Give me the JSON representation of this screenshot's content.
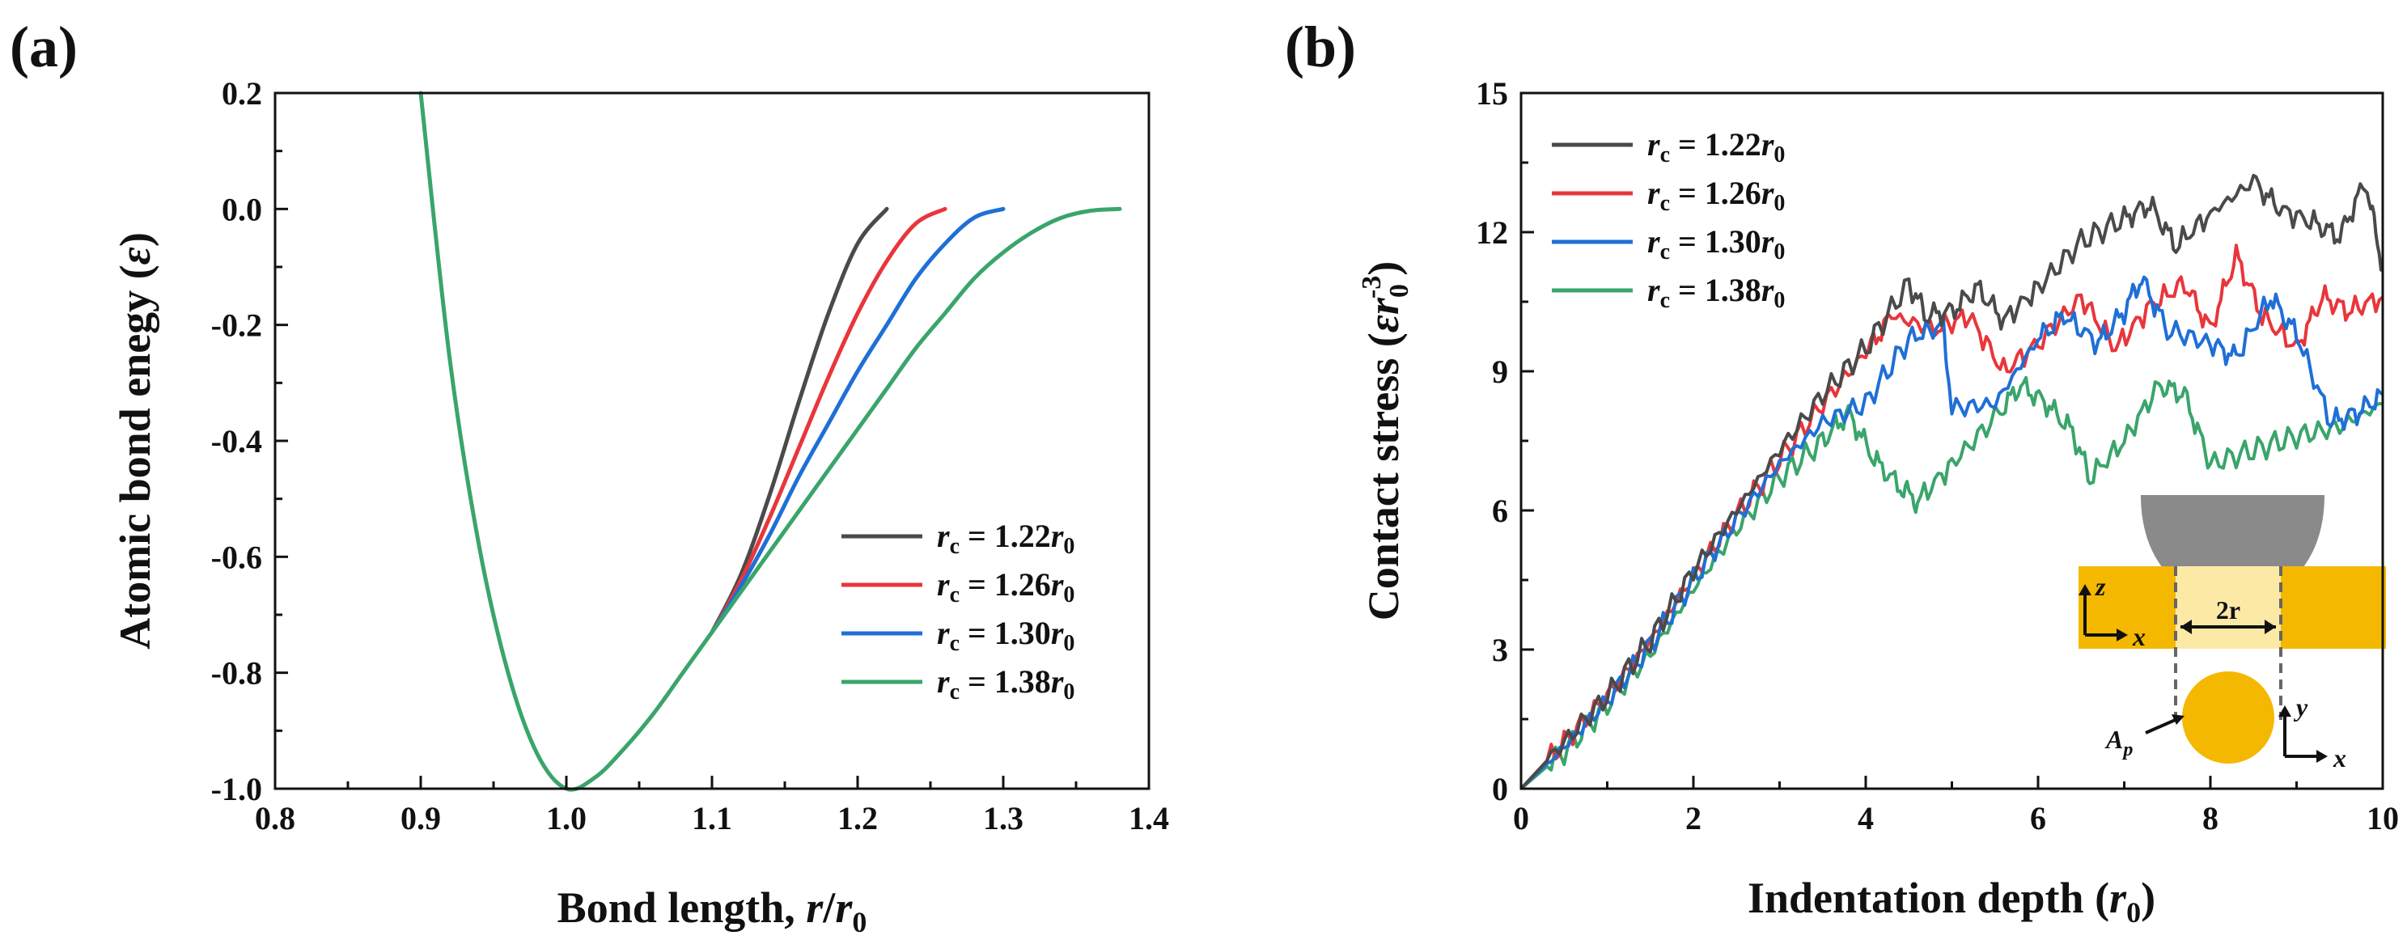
{
  "chart_data": [
    {
      "panel_label": "(a)",
      "type": "line",
      "xlabel": {
        "main": "Bond length, ",
        "var": "r",
        "slash": "/",
        "var2": "r",
        "sub": "0"
      },
      "ylabel": {
        "main": "Atomic bond enegy (",
        "var": "ε",
        "close": ")"
      },
      "xlim": [
        0.8,
        1.4
      ],
      "ylim": [
        -1.0,
        0.2
      ],
      "xticks": [
        0.8,
        0.9,
        1.0,
        1.1,
        1.2,
        1.3,
        1.4
      ],
      "xtick_labels": [
        "0.8",
        "0.9",
        "1.0",
        "1.1",
        "1.2",
        "1.3",
        "1.4"
      ],
      "yticks": [
        -1.0,
        -0.8,
        -0.6,
        -0.4,
        -0.2,
        0.0,
        0.2
      ],
      "ytick_labels": [
        "-1.0",
        "-0.8",
        "-0.6",
        "-0.4",
        "-0.2",
        "0.0",
        "0.2"
      ],
      "legend_position": "bottom-right",
      "series": [
        {
          "name": "r_c = 1.22r_0",
          "rc": 1.22,
          "color": "#4a4a4a",
          "legend": {
            "r": "r",
            "sub": "c",
            "eq": " = 1.22",
            "r2": "r",
            "sub2": "0"
          }
        },
        {
          "name": "r_c = 1.26r_0",
          "rc": 1.26,
          "color": "#e8363b",
          "legend": {
            "r": "r",
            "sub": "c",
            "eq": " = 1.26",
            "r2": "r",
            "sub2": "0"
          }
        },
        {
          "name": "r_c = 1.30r_0",
          "rc": 1.3,
          "color": "#1f6fd6",
          "legend": {
            "r": "r",
            "sub": "c",
            "eq": " = 1.30",
            "r2": "r",
            "sub2": "0"
          }
        },
        {
          "name": "r_c = 1.38r_0",
          "rc": 1.38,
          "color": "#3aa56a",
          "legend": {
            "r": "r",
            "sub": "c",
            "eq": " = 1.38",
            "r2": "r",
            "sub2": "0"
          }
        }
      ],
      "curve_points": {
        "shared": [
          [
            0.9,
            0.2
          ],
          [
            0.92,
            -0.26
          ],
          [
            0.94,
            -0.58
          ],
          [
            0.96,
            -0.8
          ],
          [
            0.98,
            -0.94
          ],
          [
            1.0,
            -1.0
          ],
          [
            1.02,
            -0.98
          ],
          [
            1.04,
            -0.93
          ],
          [
            1.06,
            -0.87
          ],
          [
            1.08,
            -0.8
          ],
          [
            1.1,
            -0.73
          ]
        ],
        "tails": [
          [
            [
              1.1,
              -0.73
            ],
            [
              1.12,
              -0.63
            ],
            [
              1.14,
              -0.49
            ],
            [
              1.16,
              -0.33
            ],
            [
              1.18,
              -0.18
            ],
            [
              1.2,
              -0.06
            ],
            [
              1.22,
              0.0
            ]
          ],
          [
            [
              1.1,
              -0.73
            ],
            [
              1.12,
              -0.64
            ],
            [
              1.14,
              -0.53
            ],
            [
              1.16,
              -0.41
            ],
            [
              1.18,
              -0.29
            ],
            [
              1.2,
              -0.18
            ],
            [
              1.22,
              -0.09
            ],
            [
              1.24,
              -0.025
            ],
            [
              1.26,
              0.0
            ]
          ],
          [
            [
              1.1,
              -0.73
            ],
            [
              1.12,
              -0.65
            ],
            [
              1.14,
              -0.56
            ],
            [
              1.16,
              -0.46
            ],
            [
              1.18,
              -0.37
            ],
            [
              1.2,
              -0.28
            ],
            [
              1.22,
              -0.2
            ],
            [
              1.24,
              -0.12
            ],
            [
              1.26,
              -0.06
            ],
            [
              1.28,
              -0.015
            ],
            [
              1.3,
              0.0
            ]
          ],
          [
            [
              1.1,
              -0.73
            ],
            [
              1.12,
              -0.66
            ],
            [
              1.14,
              -0.59
            ],
            [
              1.16,
              -0.52
            ],
            [
              1.18,
              -0.45
            ],
            [
              1.2,
              -0.38
            ],
            [
              1.22,
              -0.31
            ],
            [
              1.24,
              -0.24
            ],
            [
              1.26,
              -0.18
            ],
            [
              1.28,
              -0.12
            ],
            [
              1.3,
              -0.075
            ],
            [
              1.32,
              -0.04
            ],
            [
              1.34,
              -0.015
            ],
            [
              1.36,
              -0.003
            ],
            [
              1.38,
              0.0
            ]
          ]
        ]
      }
    },
    {
      "panel_label": "(b)",
      "type": "line",
      "xlabel": {
        "main": "Indentation depth (",
        "var": "r",
        "sub": "0",
        "close": ")"
      },
      "ylabel": {
        "main": "Contact stress (",
        "var": "εr",
        "sub": "0",
        "sup": "-3",
        "close": ")"
      },
      "xlim": [
        0,
        10
      ],
      "ylim": [
        0,
        15
      ],
      "xticks": [
        0,
        2,
        4,
        6,
        8,
        10
      ],
      "xtick_labels": [
        "0",
        "2",
        "4",
        "6",
        "8",
        "10"
      ],
      "yticks": [
        0,
        3,
        6,
        9,
        12,
        15
      ],
      "ytick_labels": [
        "0",
        "3",
        "6",
        "9",
        "12",
        "15"
      ],
      "legend_position": "top-left",
      "series": [
        {
          "name": "r_c = 1.22r_0",
          "color": "#4a4a4a",
          "legend": {
            "r": "r",
            "sub": "c",
            "eq": " = 1.22",
            "r2": "r",
            "sub2": "0"
          },
          "points": [
            [
              0,
              0
            ],
            [
              0.5,
              1.0
            ],
            [
              1,
              2.0
            ],
            [
              1.5,
              3.2
            ],
            [
              2,
              4.7
            ],
            [
              2.5,
              6.0
            ],
            [
              3,
              7.3
            ],
            [
              3.5,
              8.5
            ],
            [
              4,
              9.5
            ],
            [
              4.5,
              10.9
            ],
            [
              4.7,
              10.2
            ],
            [
              5,
              10.3
            ],
            [
              5.3,
              10.8
            ],
            [
              5.6,
              10.1
            ],
            [
              6,
              10.8
            ],
            [
              6.5,
              11.8
            ],
            [
              7,
              12.3
            ],
            [
              7.3,
              12.6
            ],
            [
              7.6,
              11.7
            ],
            [
              8,
              12.4
            ],
            [
              8.5,
              13.1
            ],
            [
              8.8,
              12.5
            ],
            [
              9.2,
              12.2
            ],
            [
              9.5,
              11.9
            ],
            [
              9.8,
              13.1
            ],
            [
              10,
              11.2
            ]
          ]
        },
        {
          "name": "r_c = 1.26r_0",
          "color": "#e8363b",
          "legend": {
            "r": "r",
            "sub": "c",
            "eq": " = 1.26",
            "r2": "r",
            "sub2": "0"
          },
          "points": [
            [
              0,
              0
            ],
            [
              0.5,
              1.0
            ],
            [
              1,
              2.0
            ],
            [
              1.5,
              3.2
            ],
            [
              2,
              4.6
            ],
            [
              2.5,
              5.9
            ],
            [
              3,
              7.1
            ],
            [
              3.5,
              8.3
            ],
            [
              4,
              9.4
            ],
            [
              4.3,
              10.2
            ],
            [
              4.8,
              9.9
            ],
            [
              5.2,
              10.2
            ],
            [
              5.6,
              9.0
            ],
            [
              6,
              9.6
            ],
            [
              6.5,
              10.6
            ],
            [
              6.9,
              9.5
            ],
            [
              7.3,
              10.4
            ],
            [
              7.7,
              10.9
            ],
            [
              8,
              9.9
            ],
            [
              8.3,
              11.5
            ],
            [
              8.6,
              10.2
            ],
            [
              9,
              9.5
            ],
            [
              9.3,
              10.6
            ],
            [
              9.6,
              10.3
            ],
            [
              10,
              10.6
            ]
          ]
        },
        {
          "name": "r_c = 1.30r_0",
          "color": "#1f6fd6",
          "legend": {
            "r": "r",
            "sub": "c",
            "eq": " = 1.30",
            "r2": "r",
            "sub2": "0"
          },
          "points": [
            [
              0,
              0
            ],
            [
              0.5,
              0.9
            ],
            [
              1,
              1.9
            ],
            [
              1.5,
              3.1
            ],
            [
              2,
              4.5
            ],
            [
              2.5,
              5.8
            ],
            [
              3,
              7.0
            ],
            [
              3.5,
              7.9
            ],
            [
              4,
              8.3
            ],
            [
              4.5,
              9.7
            ],
            [
              4.9,
              10.0
            ],
            [
              5,
              8.2
            ],
            [
              5.5,
              8.3
            ],
            [
              6,
              9.7
            ],
            [
              6.3,
              10.2
            ],
            [
              6.7,
              9.6
            ],
            [
              7,
              10.3
            ],
            [
              7.2,
              11.0
            ],
            [
              7.5,
              9.9
            ],
            [
              8,
              9.6
            ],
            [
              8.3,
              9.3
            ],
            [
              8.7,
              10.6
            ],
            [
              9,
              9.8
            ],
            [
              9.4,
              7.9
            ],
            [
              9.7,
              8.1
            ],
            [
              10,
              8.5
            ]
          ]
        },
        {
          "name": "r_c = 1.38r_0",
          "color": "#3aa56a",
          "legend": {
            "r": "r",
            "sub": "c",
            "eq": " = 1.38",
            "r2": "r",
            "sub2": "0"
          },
          "points": [
            [
              0,
              0
            ],
            [
              0.5,
              0.8
            ],
            [
              1,
              1.8
            ],
            [
              1.5,
              2.9
            ],
            [
              2,
              4.3
            ],
            [
              2.5,
              5.6
            ],
            [
              3,
              6.7
            ],
            [
              3.5,
              7.5
            ],
            [
              3.8,
              8.1
            ],
            [
              4.1,
              7.1
            ],
            [
              4.4,
              6.5
            ],
            [
              4.6,
              6.2
            ],
            [
              5,
              7.0
            ],
            [
              5.5,
              8.0
            ],
            [
              5.8,
              8.7
            ],
            [
              6.1,
              8.3
            ],
            [
              6.4,
              7.7
            ],
            [
              6.6,
              6.7
            ],
            [
              7,
              7.5
            ],
            [
              7.4,
              8.7
            ],
            [
              7.7,
              8.5
            ],
            [
              8,
              7.0
            ],
            [
              8.5,
              7.3
            ],
            [
              9,
              7.6
            ],
            [
              9.5,
              7.8
            ],
            [
              10,
              8.3
            ]
          ]
        }
      ],
      "inset": {
        "z_label": "z",
        "x_label_top": "x",
        "two_r_label": "2r",
        "y_label": "y",
        "x_label_bottom": "x",
        "ap_label": "A",
        "ap_sub": "p",
        "indenter_color": "#8a8a8a",
        "slab_color": "#f5b800",
        "disc_color": "#f5b800"
      }
    }
  ]
}
